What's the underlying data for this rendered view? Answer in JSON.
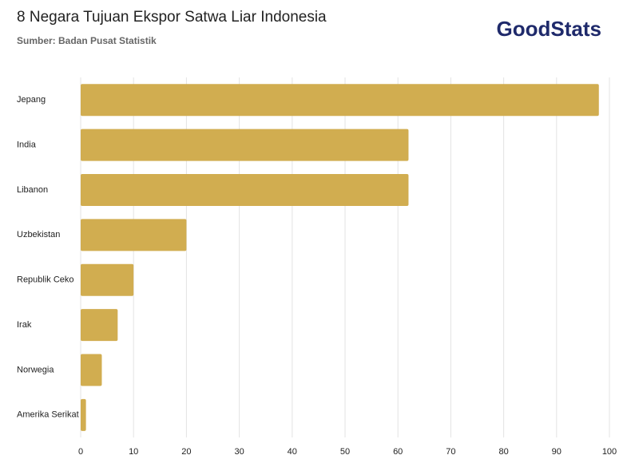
{
  "chart_data": {
    "type": "bar",
    "orientation": "horizontal",
    "title": "8 Negara Tujuan Ekspor Satwa Liar Indonesia",
    "subtitle": "Sumber: Badan Pusat Statistik",
    "logo": "GoodStats",
    "categories": [
      "Jepang",
      "India",
      "Libanon",
      "Uzbekistan",
      "Republik Ceko",
      "Irak",
      "Norwegia",
      "Amerika Serikat"
    ],
    "values": [
      98,
      62,
      62,
      20,
      10,
      7,
      4,
      1
    ],
    "color": "#d1ad50",
    "xlim": [
      0,
      100
    ],
    "xticks": [
      0,
      10,
      20,
      30,
      40,
      50,
      60,
      70,
      80,
      90,
      100
    ],
    "grid": true
  }
}
